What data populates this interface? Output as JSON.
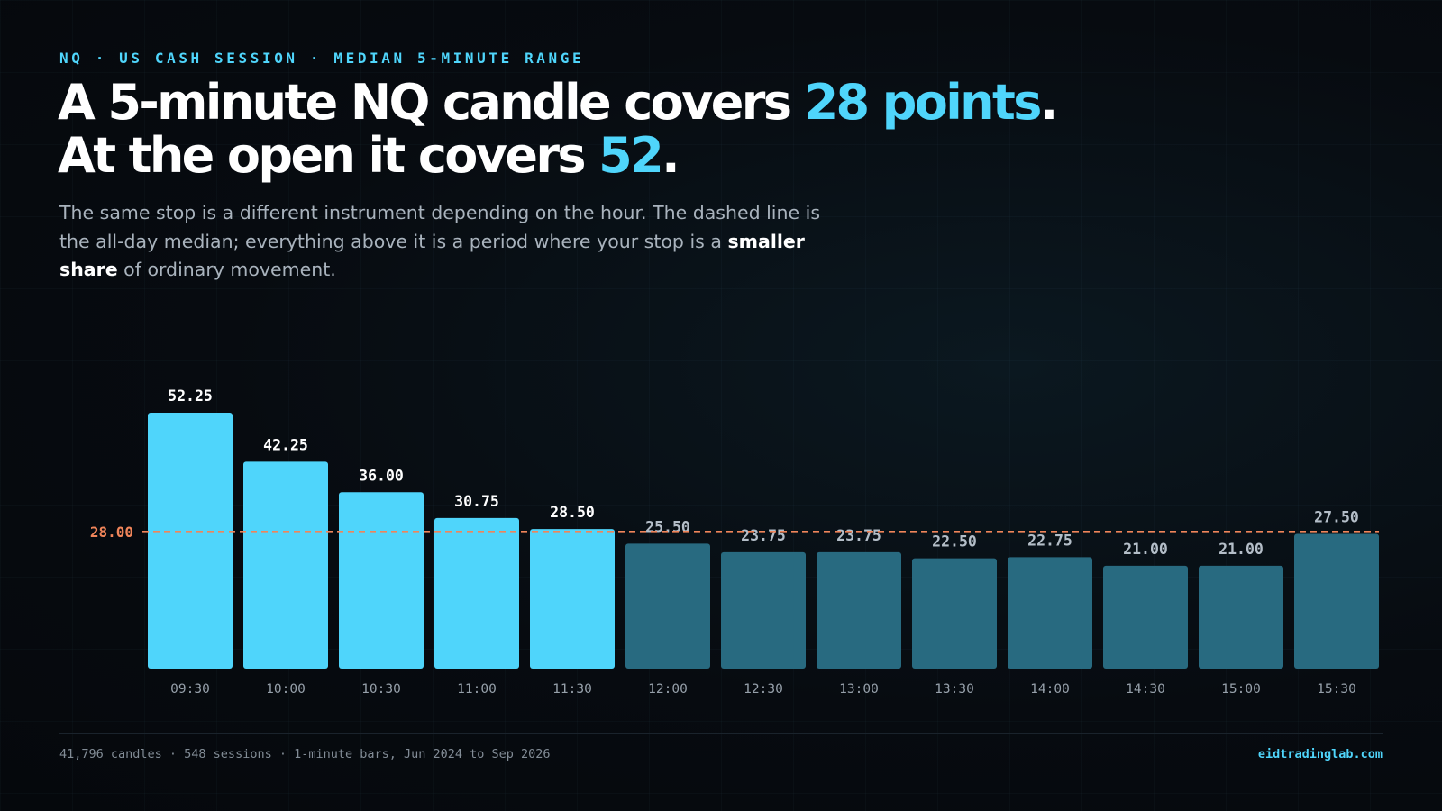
{
  "header": {
    "eyebrow": "NQ · US CASH SESSION · MEDIAN 5-MINUTE RANGE",
    "headline_line1_prefix": "A 5-minute NQ candle covers ",
    "headline_line1_highlight": "28 points",
    "headline_line1_suffix": ".",
    "headline_line2_prefix": "At the open it covers ",
    "headline_line2_highlight": "52",
    "headline_line2_suffix": ".",
    "subtitle_part1": "The same stop is a different instrument depending on the hour. The dashed line is the all-day median; everything above it is a period where your stop is a ",
    "subtitle_bold": "smaller share",
    "subtitle_part2": " of ordinary movement."
  },
  "footer": {
    "source": "41,796 candles · 548 sessions · 1-minute bars, Jun 2024 to Sep 2026",
    "brand": "eidtradinglab.com"
  },
  "colors": {
    "accent": "#4fd5fb",
    "above_median_bar": "#4fd5fb",
    "below_median_bar": "#286a80",
    "median_line": "#f0855a",
    "label_above": "#ffffff",
    "label_below": "#b4bec8",
    "tick_label": "#96a0aa"
  },
  "chart_data": {
    "type": "bar",
    "categories": [
      "09:30",
      "10:00",
      "10:30",
      "11:00",
      "11:30",
      "12:00",
      "12:30",
      "13:00",
      "13:30",
      "14:00",
      "14:30",
      "15:00",
      "15:30"
    ],
    "values": [
      52.25,
      42.25,
      36.0,
      30.75,
      28.5,
      25.5,
      23.75,
      23.75,
      22.5,
      22.75,
      21.0,
      21.0,
      27.5
    ],
    "data_labels": [
      "52.25",
      "42.25",
      "36.00",
      "30.75",
      "28.50",
      "25.50",
      "23.75",
      "23.75",
      "22.50",
      "22.75",
      "21.00",
      "21.00",
      "27.50"
    ],
    "reference_line": {
      "value": 28.0,
      "label": "28.00",
      "style": "dashed"
    },
    "ylim": [
      0,
      55
    ],
    "grid": false,
    "legend": "none",
    "title": "",
    "xlabel": "",
    "ylabel": ""
  }
}
